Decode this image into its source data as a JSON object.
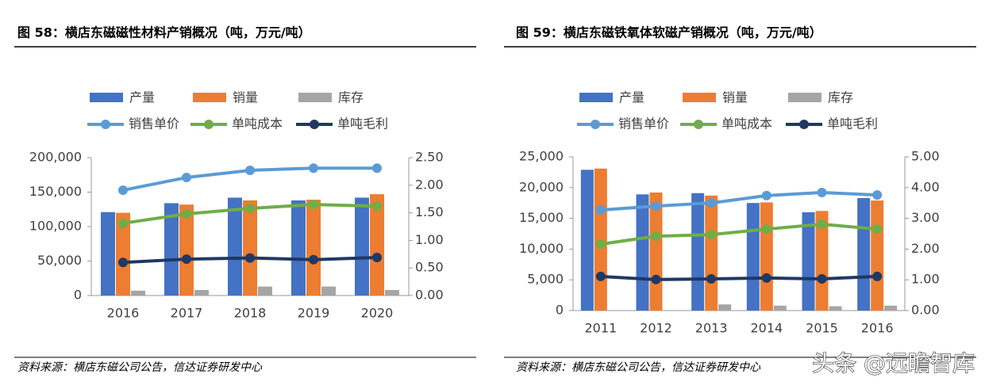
{
  "chart_data": [
    {
      "type": "bar",
      "title": "图 58：横店东磁磁性材料产销概况（吨，万元/吨）",
      "source": "资料来源：横店东磁公司公告，信达证券研发中心",
      "categories": [
        "2016",
        "2017",
        "2018",
        "2019",
        "2020"
      ],
      "series": [
        {
          "name": "产量",
          "color": "#4472c4",
          "type": "bar",
          "values": [
            121000,
            134000,
            142000,
            138000,
            142000
          ]
        },
        {
          "name": "销量",
          "color": "#ed7d31",
          "type": "bar",
          "values": [
            120000,
            132000,
            138000,
            139000,
            147000
          ]
        },
        {
          "name": "库存",
          "color": "#a5a5a5",
          "type": "bar",
          "values": [
            7000,
            8000,
            13000,
            13000,
            8000
          ]
        },
        {
          "name": "销售单价",
          "color": "#5b9bd5",
          "type": "line",
          "axis": "y2",
          "values": [
            1.91,
            2.14,
            2.27,
            2.31,
            2.31
          ]
        },
        {
          "name": "单吨成本",
          "color": "#70ad47",
          "type": "line",
          "axis": "y2",
          "values": [
            1.31,
            1.48,
            1.58,
            1.65,
            1.62
          ]
        },
        {
          "name": "单吨毛利",
          "color": "#1f3864",
          "type": "line",
          "axis": "y2",
          "values": [
            0.6,
            0.66,
            0.68,
            0.65,
            0.69
          ]
        }
      ],
      "ylim": [
        0,
        200000
      ],
      "yticks": [
        0,
        {
          "value": 50000,
          "label": "50,000"
        },
        {
          "value": 100000,
          "label": "100,000"
        },
        {
          "value": 150000,
          "label": "150,000"
        },
        {
          "value": 200000,
          "label": "200,000"
        }
      ],
      "y2lim": [
        0,
        2.5
      ],
      "y2ticks": [
        {
          "value": 0,
          "label": "0.00"
        },
        {
          "value": 0.5,
          "label": "0.50"
        },
        {
          "value": 1,
          "label": "1.00"
        },
        {
          "value": 1.5,
          "label": "1.50"
        },
        {
          "value": 2,
          "label": "2.00"
        },
        {
          "value": 2.5,
          "label": "2.50"
        }
      ]
    },
    {
      "type": "bar",
      "title": "图 59：横店东磁铁氧体软磁产销概况（吨，万元/吨）",
      "source": "资料来源：横店东磁公司公告，信达证券研发中心",
      "watermark": "头条 @远瞻智库",
      "categories": [
        "2011",
        "2012",
        "2013",
        "2014",
        "2015",
        "2016"
      ],
      "series": [
        {
          "name": "产量",
          "color": "#4472c4",
          "type": "bar",
          "values": [
            22900,
            18900,
            19100,
            17500,
            16000,
            18300
          ]
        },
        {
          "name": "销量",
          "color": "#ed7d31",
          "type": "bar",
          "values": [
            23100,
            19200,
            18700,
            17600,
            16200,
            17900
          ]
        },
        {
          "name": "库存",
          "color": "#a5a5a5",
          "type": "bar",
          "values": [
            0,
            0,
            1000,
            800,
            700,
            800
          ]
        },
        {
          "name": "销售单价",
          "color": "#5b9bd5",
          "type": "line",
          "axis": "y2",
          "values": [
            3.27,
            3.4,
            3.5,
            3.74,
            3.84,
            3.76
          ]
        },
        {
          "name": "单吨成本",
          "color": "#70ad47",
          "type": "line",
          "axis": "y2",
          "values": [
            2.16,
            2.42,
            2.47,
            2.65,
            2.81,
            2.65
          ]
        },
        {
          "name": "单吨毛利",
          "color": "#1f3864",
          "type": "line",
          "axis": "y2",
          "values": [
            1.11,
            1.01,
            1.03,
            1.06,
            1.03,
            1.11
          ]
        }
      ],
      "ylim": [
        0,
        25000
      ],
      "yticks": [
        0,
        {
          "value": 5000,
          "label": "5,000"
        },
        {
          "value": 10000,
          "label": "10,000"
        },
        {
          "value": 15000,
          "label": "15,000"
        },
        {
          "value": 20000,
          "label": "20,000"
        },
        {
          "value": 25000,
          "label": "25,000"
        }
      ],
      "y2lim": [
        0,
        5
      ],
      "y2ticks": [
        {
          "value": 0,
          "label": "0.00"
        },
        {
          "value": 1,
          "label": "1.00"
        },
        {
          "value": 2,
          "label": "2.00"
        },
        {
          "value": 3,
          "label": "3.00"
        },
        {
          "value": 4,
          "label": "4.00"
        },
        {
          "value": 5,
          "label": "5.00"
        }
      ]
    }
  ]
}
